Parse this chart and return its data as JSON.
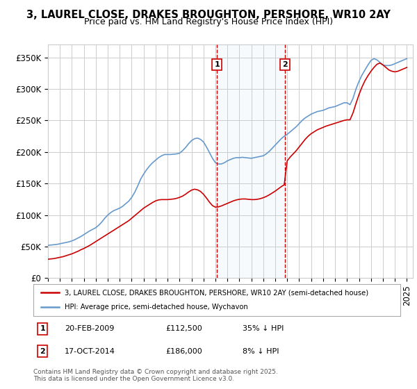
{
  "title": "3, LAUREL CLOSE, DRAKES BROUGHTON, PERSHORE, WR10 2AY",
  "subtitle": "Price paid vs. HM Land Registry's House Price Index (HPI)",
  "ylabel_ticks": [
    "£0",
    "£50K",
    "£100K",
    "£150K",
    "£200K",
    "£250K",
    "£300K",
    "£350K"
  ],
  "ytick_values": [
    0,
    50000,
    100000,
    150000,
    200000,
    250000,
    300000,
    350000
  ],
  "ylim": [
    0,
    370000
  ],
  "xlim_start": 1995.0,
  "xlim_end": 2025.5,
  "line1_color": "#cc0000",
  "line2_color": "#6699cc",
  "shade_color": "#d0e4f7",
  "vline_color": "#cc0000",
  "marker1_x": 2009.13,
  "marker2_x": 2014.8,
  "marker1_label": "1",
  "marker2_label": "2",
  "legend_line1": "3, LAUREL CLOSE, DRAKES BROUGHTON, PERSHORE, WR10 2AY (semi-detached house)",
  "legend_line2": "HPI: Average price, semi-detached house, Wychavon",
  "footer": "Contains HM Land Registry data © Crown copyright and database right 2025.\nThis data is licensed under the Open Government Licence v3.0.",
  "background_color": "#ffffff",
  "grid_color": "#cccccc",
  "title_fontsize": 10.5,
  "subtitle_fontsize": 9,
  "tick_fontsize": 8.5,
  "hpi_data_x": [
    1995.0,
    1995.25,
    1995.5,
    1995.75,
    1996.0,
    1996.25,
    1996.5,
    1996.75,
    1997.0,
    1997.25,
    1997.5,
    1997.75,
    1998.0,
    1998.25,
    1998.5,
    1998.75,
    1999.0,
    1999.25,
    1999.5,
    1999.75,
    2000.0,
    2000.25,
    2000.5,
    2000.75,
    2001.0,
    2001.25,
    2001.5,
    2001.75,
    2002.0,
    2002.25,
    2002.5,
    2002.75,
    2003.0,
    2003.25,
    2003.5,
    2003.75,
    2004.0,
    2004.25,
    2004.5,
    2004.75,
    2005.0,
    2005.25,
    2005.5,
    2005.75,
    2006.0,
    2006.25,
    2006.5,
    2006.75,
    2007.0,
    2007.25,
    2007.5,
    2007.75,
    2008.0,
    2008.25,
    2008.5,
    2008.75,
    2009.0,
    2009.25,
    2009.5,
    2009.75,
    2010.0,
    2010.25,
    2010.5,
    2010.75,
    2011.0,
    2011.25,
    2011.5,
    2011.75,
    2012.0,
    2012.25,
    2012.5,
    2012.75,
    2013.0,
    2013.25,
    2013.5,
    2013.75,
    2014.0,
    2014.25,
    2014.5,
    2014.75,
    2015.0,
    2015.25,
    2015.5,
    2015.75,
    2016.0,
    2016.25,
    2016.5,
    2016.75,
    2017.0,
    2017.25,
    2017.5,
    2017.75,
    2018.0,
    2018.25,
    2018.5,
    2018.75,
    2019.0,
    2019.25,
    2019.5,
    2019.75,
    2020.0,
    2020.25,
    2020.5,
    2020.75,
    2021.0,
    2021.25,
    2021.5,
    2021.75,
    2022.0,
    2022.25,
    2022.5,
    2022.75,
    2023.0,
    2023.25,
    2023.5,
    2023.75,
    2024.0,
    2024.25,
    2024.5,
    2024.75,
    2025.0
  ],
  "hpi_data_y": [
    52000,
    52500,
    53000,
    53500,
    54500,
    55500,
    56500,
    57500,
    59000,
    61000,
    63500,
    66000,
    69000,
    72000,
    75000,
    77500,
    80000,
    84000,
    89000,
    95000,
    100000,
    104000,
    107000,
    109000,
    111000,
    114000,
    118000,
    122000,
    128000,
    136000,
    146000,
    157000,
    165000,
    172000,
    178000,
    183000,
    187000,
    191000,
    194000,
    196000,
    196000,
    196000,
    196500,
    197000,
    198000,
    202000,
    207000,
    213000,
    218000,
    221000,
    222000,
    220000,
    216000,
    208000,
    199000,
    190000,
    183000,
    181000,
    181000,
    183000,
    186000,
    188000,
    190000,
    191000,
    191000,
    191500,
    191000,
    190500,
    190000,
    191000,
    192000,
    193000,
    194000,
    197000,
    201000,
    206000,
    211000,
    216000,
    221000,
    225000,
    228000,
    232000,
    236000,
    240000,
    245000,
    250000,
    254000,
    257000,
    260000,
    262000,
    264000,
    265000,
    266000,
    268000,
    270000,
    271000,
    272000,
    274000,
    276000,
    278000,
    278000,
    275000,
    285000,
    300000,
    312000,
    322000,
    330000,
    338000,
    345000,
    348000,
    346000,
    342000,
    338000,
    337000,
    337000,
    338000,
    340000,
    342000,
    344000,
    346000,
    348000
  ],
  "prop_data_x": [
    1995.0,
    1995.25,
    1995.5,
    1995.75,
    1996.0,
    1996.25,
    1996.5,
    1996.75,
    1997.0,
    1997.25,
    1997.5,
    1997.75,
    1998.0,
    1998.25,
    1998.5,
    1998.75,
    1999.0,
    1999.25,
    1999.5,
    1999.75,
    2000.0,
    2000.25,
    2000.5,
    2000.75,
    2001.0,
    2001.25,
    2001.5,
    2001.75,
    2002.0,
    2002.25,
    2002.5,
    2002.75,
    2003.0,
    2003.25,
    2003.5,
    2003.75,
    2004.0,
    2004.25,
    2004.5,
    2004.75,
    2005.0,
    2005.25,
    2005.5,
    2005.75,
    2006.0,
    2006.25,
    2006.5,
    2006.75,
    2007.0,
    2007.25,
    2007.5,
    2007.75,
    2008.0,
    2008.25,
    2008.5,
    2008.75,
    2009.0,
    2009.25,
    2009.5,
    2009.75,
    2010.0,
    2010.25,
    2010.5,
    2010.75,
    2011.0,
    2011.25,
    2011.5,
    2011.75,
    2012.0,
    2012.25,
    2012.5,
    2012.75,
    2013.0,
    2013.25,
    2013.5,
    2013.75,
    2014.0,
    2014.25,
    2014.5,
    2014.75,
    2015.0,
    2015.25,
    2015.5,
    2015.75,
    2016.0,
    2016.25,
    2016.5,
    2016.75,
    2017.0,
    2017.25,
    2017.5,
    2017.75,
    2018.0,
    2018.25,
    2018.5,
    2018.75,
    2019.0,
    2019.25,
    2019.5,
    2019.75,
    2020.0,
    2020.25,
    2020.5,
    2020.75,
    2021.0,
    2021.25,
    2021.5,
    2021.75,
    2022.0,
    2022.25,
    2022.5,
    2022.75,
    2023.0,
    2023.25,
    2023.5,
    2023.75,
    2024.0,
    2024.25,
    2024.5,
    2024.75,
    2025.0
  ],
  "prop_data_y": [
    30000,
    30500,
    31000,
    32000,
    33000,
    34000,
    35500,
    37000,
    38500,
    40500,
    42500,
    45000,
    47000,
    49500,
    52000,
    55000,
    58000,
    61000,
    64000,
    67000,
    70000,
    73000,
    76000,
    79000,
    82000,
    85000,
    88000,
    91000,
    95000,
    99000,
    103000,
    107000,
    111000,
    114000,
    117000,
    120000,
    122500,
    124000,
    124500,
    124500,
    124500,
    125000,
    125500,
    126500,
    128000,
    130000,
    133000,
    136500,
    139500,
    141000,
    140000,
    137500,
    133000,
    127000,
    120500,
    115000,
    112500,
    113000,
    114500,
    116500,
    118500,
    120500,
    122500,
    124000,
    125000,
    125500,
    125500,
    125000,
    124500,
    124500,
    125000,
    126000,
    127500,
    129500,
    132000,
    135000,
    138000,
    141500,
    145000,
    148000,
    186000,
    192000,
    197000,
    202000,
    208000,
    214000,
    220000,
    225000,
    229000,
    232000,
    235000,
    237000,
    239000,
    241000,
    242500,
    244000,
    245500,
    247000,
    248500,
    250000,
    251000,
    251000,
    262000,
    277000,
    291000,
    303000,
    313000,
    321000,
    328000,
    334000,
    339000,
    341000,
    338000,
    334000,
    330000,
    328000,
    327000,
    328000,
    330000,
    332000,
    334000
  ]
}
